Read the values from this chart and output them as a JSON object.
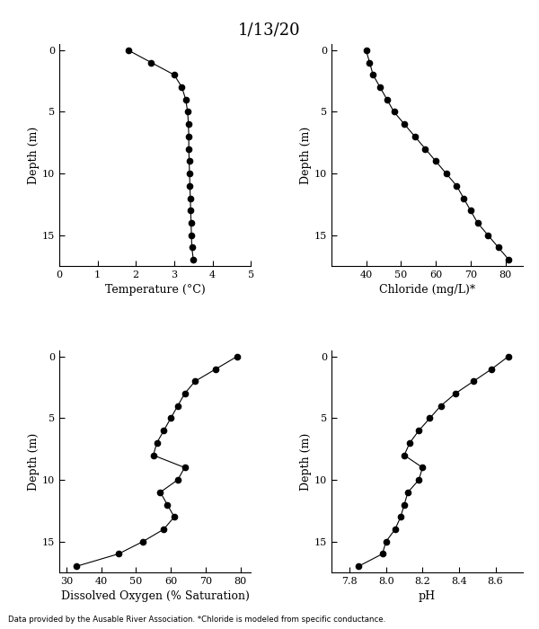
{
  "title": "1/13/20",
  "footnote": "Data provided by the Ausable River Association. *Chloride is modeled from specific conductance.",
  "temp": {
    "depth": [
      0,
      1,
      2,
      3,
      4,
      5,
      6,
      7,
      8,
      9,
      10,
      11,
      12,
      13,
      14,
      15,
      16,
      17
    ],
    "values": [
      1.8,
      2.4,
      3.0,
      3.2,
      3.3,
      3.35,
      3.37,
      3.38,
      3.38,
      3.39,
      3.4,
      3.41,
      3.42,
      3.43,
      3.44,
      3.45,
      3.46,
      3.5
    ],
    "xlabel": "Temperature (°C)",
    "xlim": [
      0,
      5
    ],
    "xticks": [
      0,
      1,
      2,
      3,
      4,
      5
    ],
    "ylim": [
      17.5,
      -0.5
    ],
    "yticks": [
      0,
      5,
      10,
      15
    ]
  },
  "chloride": {
    "depth": [
      0,
      1,
      2,
      3,
      4,
      5,
      6,
      7,
      8,
      9,
      10,
      11,
      12,
      13,
      14,
      15,
      16,
      17
    ],
    "values": [
      40,
      41,
      42,
      44,
      46,
      48,
      51,
      54,
      57,
      60,
      63,
      66,
      68,
      70,
      72,
      75,
      78,
      81
    ],
    "xlabel": "Chloride (mg/L)*",
    "xlim": [
      30,
      85
    ],
    "xticks": [
      40,
      50,
      60,
      70,
      80
    ],
    "ylim": [
      17.5,
      -0.5
    ],
    "yticks": [
      0,
      5,
      10,
      15
    ]
  },
  "do": {
    "depth": [
      0,
      1,
      2,
      3,
      4,
      5,
      6,
      7,
      8,
      9,
      10,
      11,
      12,
      13,
      14,
      15,
      16,
      17
    ],
    "values": [
      79,
      73,
      67,
      64,
      62,
      60,
      58,
      56,
      55,
      64,
      62,
      57,
      59,
      61,
      58,
      52,
      45,
      33
    ],
    "xlabel": "Dissolved Oxygen (% Saturation)",
    "xlim": [
      28,
      83
    ],
    "xticks": [
      30,
      40,
      50,
      60,
      70,
      80
    ],
    "ylim": [
      17.5,
      -0.5
    ],
    "yticks": [
      0,
      5,
      10,
      15
    ]
  },
  "ph": {
    "depth": [
      0,
      1,
      2,
      3,
      4,
      5,
      6,
      7,
      8,
      9,
      10,
      11,
      12,
      13,
      14,
      15,
      16,
      17
    ],
    "values": [
      8.67,
      8.58,
      8.48,
      8.38,
      8.3,
      8.24,
      8.18,
      8.13,
      8.1,
      8.2,
      8.18,
      8.12,
      8.1,
      8.08,
      8.05,
      8.0,
      7.98,
      7.85
    ],
    "xlabel": "pH",
    "xlim": [
      7.7,
      8.75
    ],
    "xticks": [
      7.8,
      8.0,
      8.2,
      8.4,
      8.6
    ],
    "ylim": [
      17.5,
      -0.5
    ],
    "yticks": [
      0,
      5,
      10,
      15
    ]
  },
  "ylabel": "Depth (m)",
  "line_color": "black",
  "marker": "o",
  "markersize": 4.5,
  "linewidth": 0.8
}
